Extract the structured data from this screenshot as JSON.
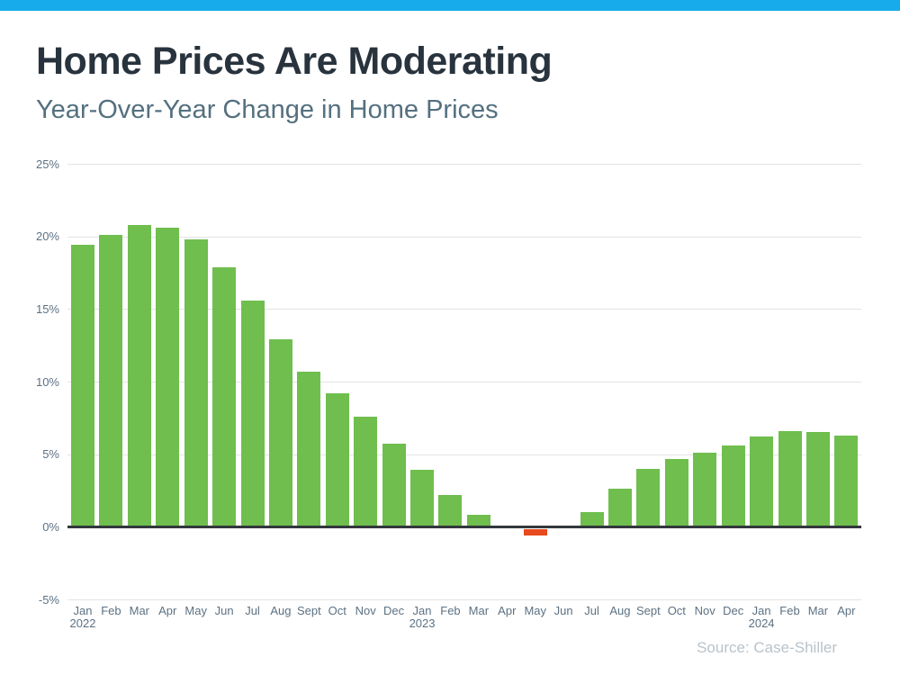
{
  "page": {
    "accent_color": "#17abeb",
    "background": "#ffffff"
  },
  "chart_data": {
    "type": "bar",
    "title": "Home Prices Are Moderating",
    "subtitle": "Year-Over-Year Change in Home Prices",
    "source": "Source: Case-Shiller",
    "xlabel": "",
    "ylabel": "",
    "ylim": [
      -5,
      25
    ],
    "grid": true,
    "legend": "none",
    "yticks": [
      {
        "value": 25,
        "label": "25%"
      },
      {
        "value": 20,
        "label": "20%"
      },
      {
        "value": 15,
        "label": "15%"
      },
      {
        "value": 10,
        "label": "10%"
      },
      {
        "value": 5,
        "label": "5%"
      },
      {
        "value": 0,
        "label": "0%"
      },
      {
        "value": -5,
        "label": "-5%"
      }
    ],
    "categories": [
      {
        "month": "Jan",
        "year": "2022"
      },
      {
        "month": "Feb"
      },
      {
        "month": "Mar"
      },
      {
        "month": "Apr"
      },
      {
        "month": "May"
      },
      {
        "month": "Jun"
      },
      {
        "month": "Jul"
      },
      {
        "month": "Aug"
      },
      {
        "month": "Sept"
      },
      {
        "month": "Oct"
      },
      {
        "month": "Nov"
      },
      {
        "month": "Dec"
      },
      {
        "month": "Jan",
        "year": "2023"
      },
      {
        "month": "Feb"
      },
      {
        "month": "Mar"
      },
      {
        "month": "Apr"
      },
      {
        "month": "May"
      },
      {
        "month": "Jun"
      },
      {
        "month": "Jul"
      },
      {
        "month": "Aug"
      },
      {
        "month": "Sept"
      },
      {
        "month": "Oct"
      },
      {
        "month": "Nov"
      },
      {
        "month": "Dec"
      },
      {
        "month": "Jan",
        "year": "2024"
      },
      {
        "month": "Feb"
      },
      {
        "month": "Mar"
      },
      {
        "month": "Apr"
      }
    ],
    "values": [
      19.4,
      20.1,
      20.8,
      20.6,
      19.8,
      17.9,
      15.6,
      12.9,
      10.7,
      9.2,
      7.6,
      5.7,
      3.9,
      2.2,
      0.8,
      0,
      -0.4,
      0,
      1.0,
      2.6,
      4.0,
      4.7,
      5.1,
      5.6,
      6.2,
      6.6,
      6.5,
      6.3
    ],
    "colors": {
      "positive_bar": "#6fbe4e",
      "negative_bar": "#e8491d",
      "zero_axis": "#32383c",
      "gridline": "#e3e3e3",
      "axis_text": "#5c7183",
      "title_text": "#28333d",
      "subtitle_text": "#54707f",
      "source_text": "#b8c3cb"
    }
  }
}
